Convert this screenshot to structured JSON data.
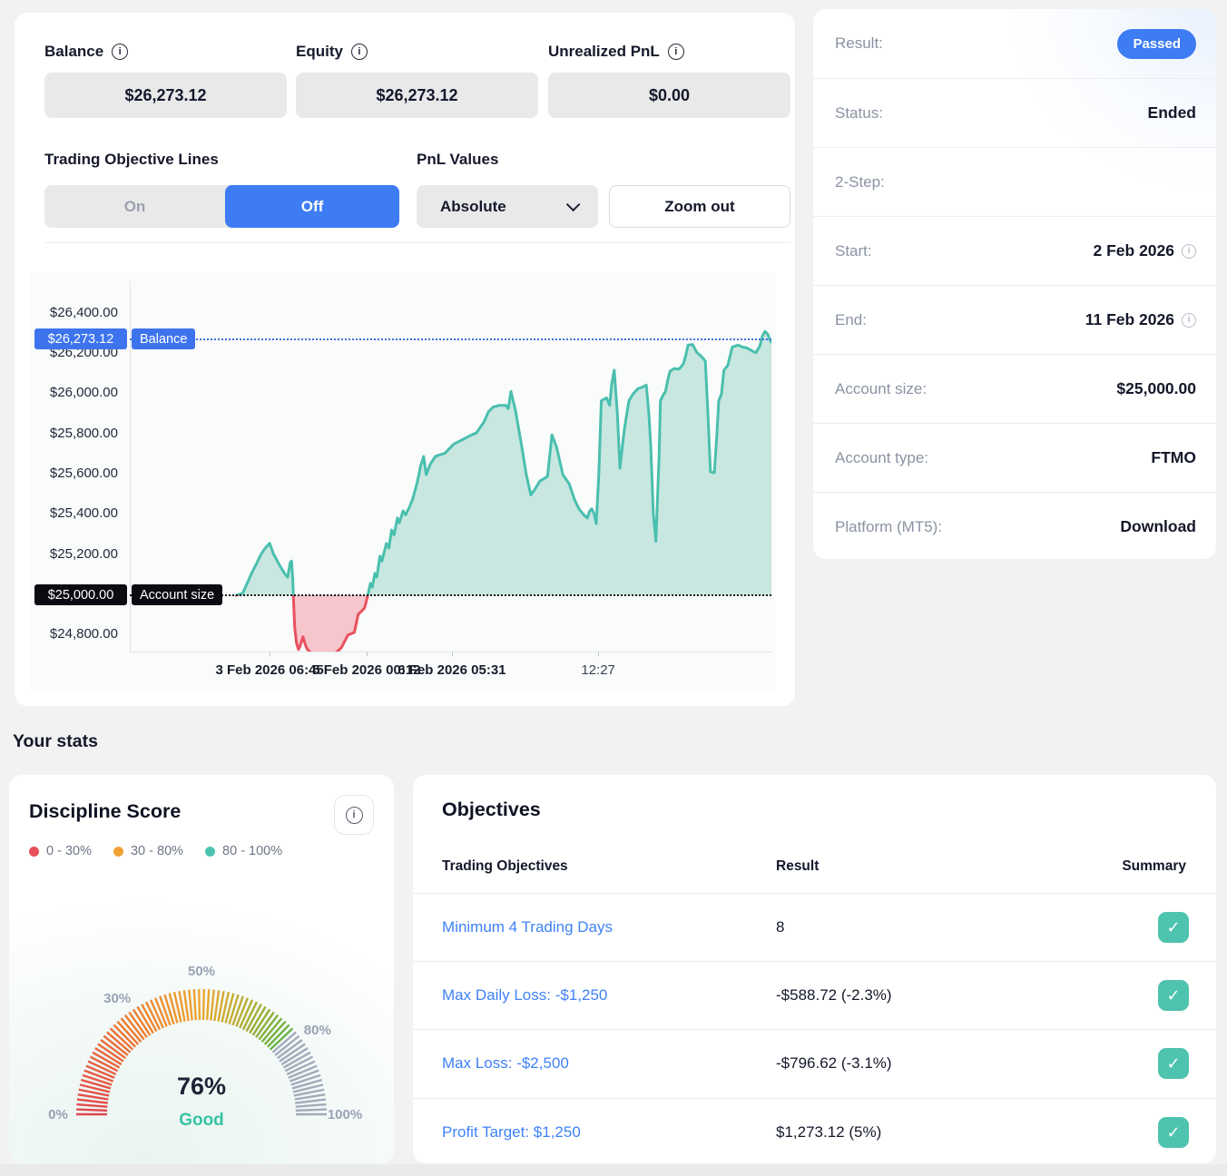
{
  "balance_panel": {
    "stats": [
      {
        "label": "Balance",
        "value": "$26,273.12"
      },
      {
        "label": "Equity",
        "value": "$26,273.12"
      },
      {
        "label": "Unrealized PnL",
        "value": "$0.00"
      }
    ],
    "toggle": {
      "label": "Trading Objective Lines",
      "on": "On",
      "off": "Off",
      "active": "Off"
    },
    "pnl_values": {
      "label": "PnL Values",
      "selected": "Absolute"
    },
    "zoom_out_label": "Zoom out"
  },
  "chart_data": {
    "type": "area",
    "ylim": [
      24720,
      26562
    ],
    "grid": false,
    "y_ticks": [
      {
        "label": "$26,400.00",
        "value": 26400
      },
      {
        "label": "$26,200.00",
        "value": 26200
      },
      {
        "label": "$26,000.00",
        "value": 26000
      },
      {
        "label": "$25,800.00",
        "value": 25800
      },
      {
        "label": "$25,600.00",
        "value": 25600
      },
      {
        "label": "$25,400.00",
        "value": 25400
      },
      {
        "label": "$25,200.00",
        "value": 25200
      },
      {
        "label": "$25,000.00",
        "value": 25000
      },
      {
        "label": "$24,800.00",
        "value": 24800
      }
    ],
    "x_ticks": [
      {
        "label": "3 Feb 2026 06:45",
        "xpct": 21.8,
        "minor": false
      },
      {
        "label": "5 Feb 2026 00:12",
        "xpct": 36.9,
        "minor": false
      },
      {
        "label": "6 Feb 2026 05:31",
        "xpct": 50.2,
        "minor": false
      },
      {
        "label": "12:27",
        "xpct": 73.0,
        "minor": true
      }
    ],
    "baseline": {
      "value": 25000
    },
    "annotations": [
      {
        "value": 26273.12,
        "value_label": "$26,273.12",
        "name": "Balance",
        "chip_color": "#3d74ee",
        "line_color": "#3f6fe0"
      },
      {
        "value": 25000,
        "value_label": "$25,000.00",
        "name": "Account size",
        "chip_color": "#0b0b12",
        "line_color": "#15151b"
      }
    ],
    "colors": {
      "line_up": "#4abfae",
      "fill_up": "#c8e7e1",
      "line_down": "#e8515e",
      "fill_down": "#f5c6cc"
    },
    "series": [
      {
        "name": "balance",
        "points": [
          [
            16.6,
            25000
          ],
          [
            17.6,
            25010
          ],
          [
            18.3,
            25060
          ],
          [
            19.0,
            25110
          ],
          [
            19.8,
            25160
          ],
          [
            20.4,
            25200
          ],
          [
            21.0,
            25230
          ],
          [
            21.8,
            25258
          ],
          [
            22.4,
            25205
          ],
          [
            23.0,
            25170
          ],
          [
            23.6,
            25135
          ],
          [
            24.2,
            25105
          ],
          [
            24.6,
            25090
          ],
          [
            25.0,
            25163
          ],
          [
            25.2,
            25170
          ],
          [
            25.4,
            25080
          ],
          [
            25.5,
            24990
          ],
          [
            25.7,
            24840
          ],
          [
            26.0,
            24760
          ],
          [
            26.3,
            24730
          ],
          [
            26.5,
            24745
          ],
          [
            27.0,
            24793
          ],
          [
            27.3,
            24760
          ],
          [
            27.6,
            24735
          ],
          [
            28.0,
            24720
          ],
          [
            28.4,
            24708
          ],
          [
            29.2,
            24700
          ],
          [
            30.2,
            24700
          ],
          [
            31.2,
            24706
          ],
          [
            32.2,
            24716
          ],
          [
            33.0,
            24740
          ],
          [
            33.5,
            24771
          ],
          [
            34.0,
            24802
          ],
          [
            34.6,
            24810
          ],
          [
            35.0,
            24815
          ],
          [
            35.3,
            24860
          ],
          [
            35.6,
            24905
          ],
          [
            36.1,
            24920
          ],
          [
            36.6,
            24937
          ],
          [
            37.1,
            25000
          ],
          [
            37.5,
            25059
          ],
          [
            37.8,
            25040
          ],
          [
            38.2,
            25109
          ],
          [
            38.5,
            25090
          ],
          [
            39.0,
            25195
          ],
          [
            39.3,
            25170
          ],
          [
            40.0,
            25258
          ],
          [
            40.4,
            25235
          ],
          [
            40.8,
            25325
          ],
          [
            41.2,
            25300
          ],
          [
            41.7,
            25384
          ],
          [
            42.0,
            25360
          ],
          [
            42.6,
            25420
          ],
          [
            43.0,
            25400
          ],
          [
            43.6,
            25440
          ],
          [
            44.1,
            25480
          ],
          [
            44.8,
            25560
          ],
          [
            45.3,
            25640
          ],
          [
            45.8,
            25690
          ],
          [
            46.2,
            25600
          ],
          [
            46.8,
            25650
          ],
          [
            47.4,
            25680
          ],
          [
            47.7,
            25692
          ],
          [
            49.1,
            25706
          ],
          [
            50.5,
            25752
          ],
          [
            51.9,
            25775
          ],
          [
            53.3,
            25798
          ],
          [
            54.0,
            25807
          ],
          [
            55.2,
            25862
          ],
          [
            55.9,
            25913
          ],
          [
            56.6,
            25936
          ],
          [
            57.6,
            25945
          ],
          [
            58.6,
            25945
          ],
          [
            59.0,
            25928
          ],
          [
            59.4,
            26014
          ],
          [
            60.1,
            25922
          ],
          [
            61.1,
            25738
          ],
          [
            61.8,
            25600
          ],
          [
            62.5,
            25499
          ],
          [
            63.2,
            25530
          ],
          [
            63.9,
            25568
          ],
          [
            65.1,
            25591
          ],
          [
            65.8,
            25798
          ],
          [
            66.5,
            25738
          ],
          [
            67.5,
            25600
          ],
          [
            68.5,
            25554
          ],
          [
            69.3,
            25476
          ],
          [
            70.0,
            25430
          ],
          [
            70.7,
            25402
          ],
          [
            71.3,
            25384
          ],
          [
            71.7,
            25420
          ],
          [
            72.0,
            25430
          ],
          [
            72.4,
            25402
          ],
          [
            72.7,
            25356
          ],
          [
            73.1,
            25600
          ],
          [
            73.5,
            25968
          ],
          [
            74.3,
            25982
          ],
          [
            74.8,
            25945
          ],
          [
            75.1,
            26050
          ],
          [
            75.5,
            26120
          ],
          [
            76.0,
            25900
          ],
          [
            76.4,
            25632
          ],
          [
            76.8,
            25750
          ],
          [
            77.1,
            25830
          ],
          [
            77.8,
            25968
          ],
          [
            78.4,
            26000
          ],
          [
            79.2,
            26028
          ],
          [
            79.9,
            26035
          ],
          [
            80.5,
            26046
          ],
          [
            80.9,
            25900
          ],
          [
            81.2,
            25738
          ],
          [
            81.6,
            25402
          ],
          [
            82.0,
            25269
          ],
          [
            82.5,
            25700
          ],
          [
            82.7,
            25968
          ],
          [
            83.2,
            26000
          ],
          [
            83.5,
            26014
          ],
          [
            83.9,
            26080
          ],
          [
            84.2,
            26115
          ],
          [
            84.9,
            26128
          ],
          [
            85.6,
            26125
          ],
          [
            86.3,
            26152
          ],
          [
            86.7,
            26200
          ],
          [
            87.0,
            26244
          ],
          [
            87.7,
            26248
          ],
          [
            88.4,
            26207
          ],
          [
            89.1,
            26188
          ],
          [
            89.7,
            26165
          ],
          [
            90.1,
            25908
          ],
          [
            90.5,
            25614
          ],
          [
            91.1,
            25609
          ],
          [
            91.5,
            25800
          ],
          [
            91.8,
            25968
          ],
          [
            92.2,
            26000
          ],
          [
            92.6,
            26120
          ],
          [
            93.2,
            26143
          ],
          [
            93.9,
            26235
          ],
          [
            94.8,
            26244
          ],
          [
            95.5,
            26235
          ],
          [
            96.2,
            26230
          ],
          [
            97.2,
            26212
          ],
          [
            97.6,
            26207
          ],
          [
            98.2,
            26240
          ],
          [
            98.6,
            26290
          ],
          [
            99.0,
            26313
          ],
          [
            99.4,
            26300
          ],
          [
            99.7,
            26276
          ],
          [
            100,
            26258
          ]
        ]
      }
    ]
  },
  "info_panel": {
    "rows": [
      {
        "label": "Result:",
        "value": "Passed"
      },
      {
        "label": "Status:",
        "value": "Ended"
      },
      {
        "label": "2-Step:",
        "value": ""
      },
      {
        "label": "Start:",
        "value": "2 Feb 2026"
      },
      {
        "label": "End:",
        "value": "11 Feb 2026"
      },
      {
        "label": "Account size:",
        "value": "$25,000.00"
      },
      {
        "label": "Account type:",
        "value": "FTMO"
      },
      {
        "label": "Platform (MT5):",
        "value": "Download"
      }
    ]
  },
  "your_stats_title": "Your stats",
  "discipline": {
    "title": "Discipline Score",
    "legend": [
      {
        "label": "0 - 30%",
        "color": "#e8505b"
      },
      {
        "label": "30 - 80%",
        "color": "#f2a134"
      },
      {
        "label": "80 - 100%",
        "color": "#4cc4b0"
      }
    ],
    "gauge": {
      "value": 76,
      "min": 0,
      "max": 100,
      "value_label": "76%",
      "status_label": "Good",
      "status_color": "#35c3a4",
      "axis_labels": [
        {
          "text": "0%",
          "frac": 0
        },
        {
          "text": "30%",
          "frac": 0.3
        },
        {
          "text": "50%",
          "frac": 0.5
        },
        {
          "text": "80%",
          "frac": 0.8
        },
        {
          "text": "100%",
          "frac": 1
        }
      ],
      "color_stops": [
        [
          0,
          "#e0454f"
        ],
        [
          0.28,
          "#ee7a31"
        ],
        [
          0.5,
          "#eda62f"
        ],
        [
          0.62,
          "#b9ae33"
        ],
        [
          0.76,
          "#67b246"
        ]
      ],
      "unfilled_color": "#a2abbb"
    }
  },
  "objectives": {
    "title": "Objectives",
    "columns": [
      "Trading Objectives",
      "Result",
      "Summary"
    ],
    "rows": [
      {
        "name": "Minimum 4 Trading Days",
        "result": "8",
        "passed": true
      },
      {
        "name": "Max Daily Loss: -$1,250",
        "result": "-$588.72 (-2.3%)",
        "passed": true
      },
      {
        "name": "Max Loss: -$2,500",
        "result": "-$796.62 (-3.1%)",
        "passed": true
      },
      {
        "name": "Profit Target: $1,250",
        "result": "$1,273.12 (5%)",
        "passed": true
      }
    ],
    "check_glyph": "✓"
  }
}
